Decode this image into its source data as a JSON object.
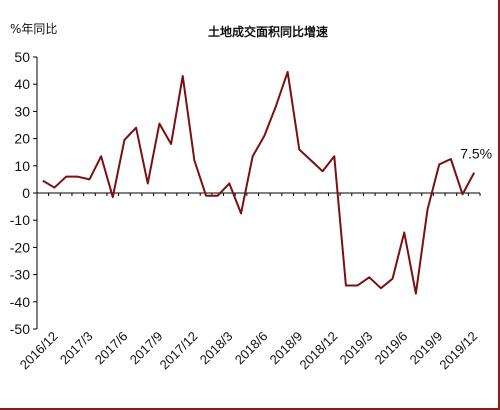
{
  "chart_data": {
    "type": "line",
    "title": "土地成交面积同比增速",
    "ylabel": "%年同比",
    "xlabel": "",
    "ylim": [
      -50,
      50
    ],
    "yticks": [
      50,
      40,
      30,
      20,
      10,
      0,
      -10,
      -20,
      -30,
      -40,
      -50
    ],
    "x_tick_labels": [
      "2016/12",
      "2017/3",
      "2017/6",
      "2017/9",
      "2017/12",
      "2018/3",
      "2018/6",
      "2018/9",
      "2018/12",
      "2019/3",
      "2019/6",
      "2019/9",
      "2019/12"
    ],
    "grid": false,
    "line_color": "#7b1010",
    "x": [
      "2016/11",
      "2016/12",
      "2017/1",
      "2017/2",
      "2017/3",
      "2017/4",
      "2017/5",
      "2017/6",
      "2017/7",
      "2017/8",
      "2017/9",
      "2017/10",
      "2017/11",
      "2017/12",
      "2018/1",
      "2018/2",
      "2018/3",
      "2018/4",
      "2018/5",
      "2018/6",
      "2018/7",
      "2018/8",
      "2018/9",
      "2018/10",
      "2018/11",
      "2018/12",
      "2019/1",
      "2019/2",
      "2019/3",
      "2019/4",
      "2019/5",
      "2019/6",
      "2019/7",
      "2019/8",
      "2019/9",
      "2019/10",
      "2019/11",
      "2019/12"
    ],
    "values": [
      4.5,
      2,
      6,
      6,
      5,
      13.5,
      -1.5,
      19.5,
      24,
      3.5,
      25.5,
      18,
      43,
      12,
      -1,
      -1,
      3.5,
      -7.5,
      13.5,
      21,
      32,
      44.5,
      16,
      12,
      8,
      13.5,
      -34,
      -34,
      -31,
      -35,
      -31.5,
      -14.5,
      -37,
      -6,
      10.5,
      12.5,
      -0.5,
      7.5
    ],
    "annotation": "7.5%"
  }
}
